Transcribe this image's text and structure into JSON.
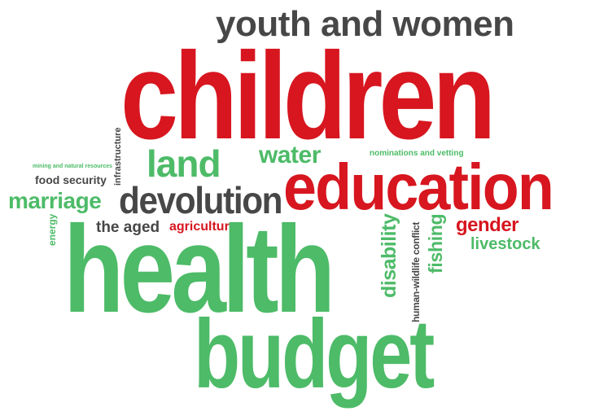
{
  "colors": {
    "red": "#d7161f",
    "green": "#4dbb68",
    "dark": "#474747"
  },
  "words": {
    "youth_and_women": "youth and women",
    "children": "children",
    "infrastructure": "infrastructure",
    "mining": "mining and natural resources",
    "food_security": "food security",
    "marriage": "marriage",
    "land": "land",
    "water": "water",
    "nominations": "nominations and vetting",
    "education": "education",
    "devolution": "devolution",
    "energy": "energy",
    "the_aged": "the aged",
    "agriculture": "agriculture",
    "disability": "disability",
    "human_wildlife": "human-wildlife conflict",
    "fishing": "fishing",
    "gender": "gender",
    "livestock": "livestock",
    "health": "health",
    "budget": "budget"
  }
}
